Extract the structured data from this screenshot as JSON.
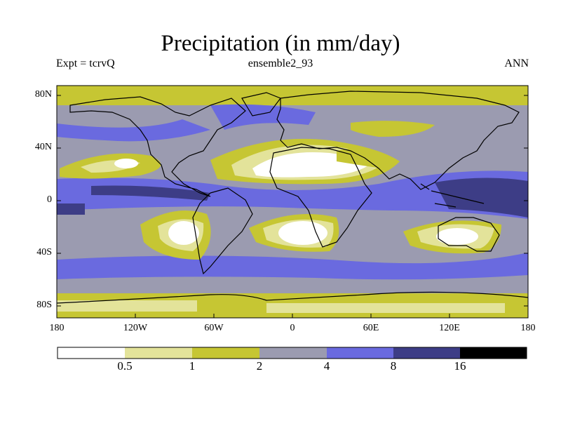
{
  "title": "Precipitation (in mm/day)",
  "subtitle_left": "Expt = tcrvQ",
  "subtitle_center": "ensemble2_93",
  "subtitle_right": "ANN",
  "y_ticks": [
    "80N",
    "40N",
    "0",
    "40S",
    "80S"
  ],
  "x_ticks": [
    "180",
    "120W",
    "60W",
    "0",
    "60E",
    "120E",
    "180"
  ],
  "colorbar": {
    "labels": [
      "0.5",
      "1",
      "2",
      "4",
      "8",
      "16"
    ],
    "colors": [
      "#ffffff",
      "#e3e39a",
      "#c6c633",
      "#9b9bb0",
      "#6a6adf",
      "#3d3d86",
      "#000000"
    ]
  },
  "colors": {
    "very_dry": "#ffffff",
    "dry": "#e3e39a",
    "semi_dry": "#c6c633",
    "moderate": "#9b9bb0",
    "wet": "#6a6adf",
    "very_wet": "#3d3d86",
    "coastline": "#000000"
  }
}
